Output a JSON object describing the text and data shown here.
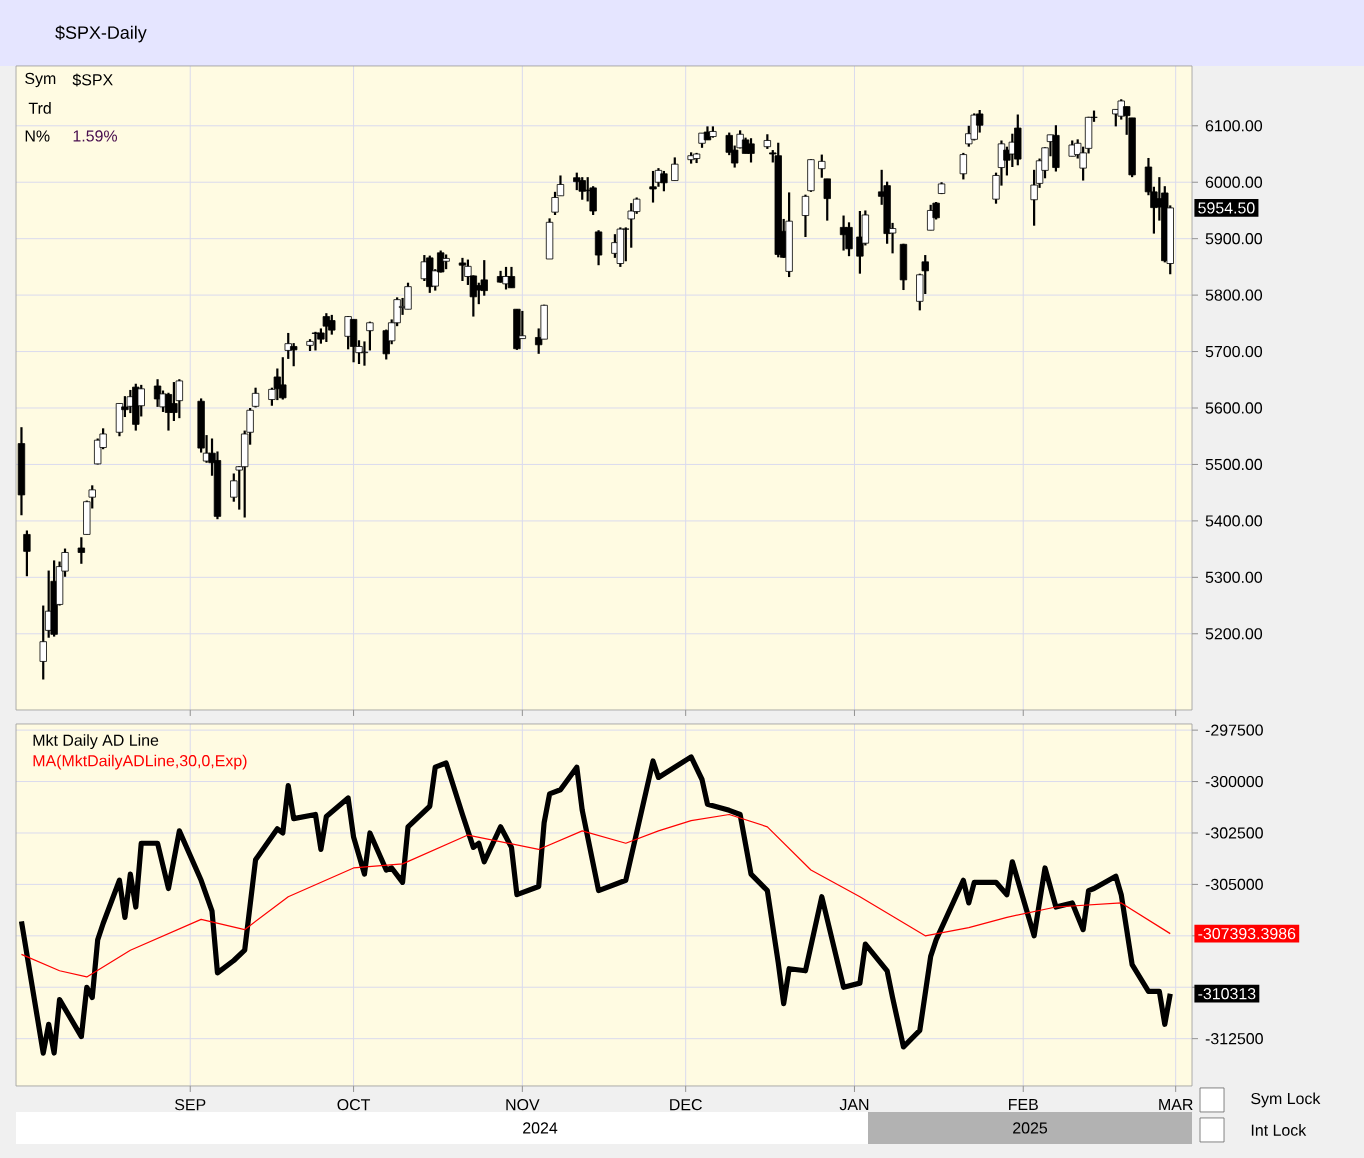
{
  "chart_data": [
    {
      "type": "candlestick",
      "title": "$SPX-Daily",
      "color": "#000000",
      "grid": true,
      "tick_labels": "y",
      "xlim": [
        "2024-07-31",
        "2025-03-04"
      ],
      "xticks": [
        {
          "value": "2024-09-01",
          "label": null
        },
        {
          "value": "2024-10-01",
          "label": null
        },
        {
          "value": "2024-11-01",
          "label": null
        },
        {
          "value": "2024-12-01",
          "label": null
        },
        {
          "value": "2025-01-01",
          "label": null
        },
        {
          "value": "2025-02-01",
          "label": null
        },
        {
          "value": "2025-03-01",
          "label": null
        }
      ],
      "ylim": [
        5065,
        6206
      ],
      "yticks": [
        {
          "value": 5200,
          "label": "5200.00"
        },
        {
          "value": 5300,
          "label": "5300.00"
        },
        {
          "value": 5400,
          "label": "5400.00"
        },
        {
          "value": 5500,
          "label": "5500.00"
        },
        {
          "value": 5600,
          "label": "5600.00"
        },
        {
          "value": 5700,
          "label": "5700.00"
        },
        {
          "value": 5800,
          "label": "5800.00"
        },
        {
          "value": 5900,
          "label": "5900.00"
        },
        {
          "value": 6000,
          "label": "6000.00"
        },
        {
          "value": 6100,
          "label": "6100.00"
        }
      ],
      "annotations": [
        "Sym",
        "$SPX",
        "Trd",
        "N%",
        "1.59%",
        {
          "text": "5954.50",
          "x": "2025-02-28",
          "y": 5954.5
        }
      ],
      "x": [
        "2024-08-01",
        "2024-08-02",
        "2024-08-05",
        "2024-08-06",
        "2024-08-07",
        "2024-08-08",
        "2024-08-09",
        "2024-08-12",
        "2024-08-13",
        "2024-08-14",
        "2024-08-15",
        "2024-08-16",
        "2024-08-19",
        "2024-08-20",
        "2024-08-21",
        "2024-08-22",
        "2024-08-23",
        "2024-08-26",
        "2024-08-27",
        "2024-08-28",
        "2024-08-29",
        "2024-08-30",
        "2024-09-03",
        "2024-09-04",
        "2024-09-05",
        "2024-09-06",
        "2024-09-09",
        "2024-09-10",
        "2024-09-11",
        "2024-09-12",
        "2024-09-13",
        "2024-09-16",
        "2024-09-17",
        "2024-09-18",
        "2024-09-19",
        "2024-09-20",
        "2024-09-23",
        "2024-09-24",
        "2024-09-25",
        "2024-09-26",
        "2024-09-27",
        "2024-09-30",
        "2024-10-01",
        "2024-10-02",
        "2024-10-03",
        "2024-10-04",
        "2024-10-07",
        "2024-10-08",
        "2024-10-09",
        "2024-10-10",
        "2024-10-11",
        "2024-10-14",
        "2024-10-15",
        "2024-10-16",
        "2024-10-17",
        "2024-10-18",
        "2024-10-21",
        "2024-10-22",
        "2024-10-23",
        "2024-10-24",
        "2024-10-25",
        "2024-10-28",
        "2024-10-29",
        "2024-10-30",
        "2024-10-31",
        "2024-11-01",
        "2024-11-04",
        "2024-11-05",
        "2024-11-06",
        "2024-11-07",
        "2024-11-08",
        "2024-11-11",
        "2024-11-12",
        "2024-11-13",
        "2024-11-14",
        "2024-11-15",
        "2024-11-18",
        "2024-11-19",
        "2024-11-20",
        "2024-11-21",
        "2024-11-22",
        "2024-11-25",
        "2024-11-26",
        "2024-11-27",
        "2024-11-29",
        "2024-12-02",
        "2024-12-03",
        "2024-12-04",
        "2024-12-05",
        "2024-12-06",
        "2024-12-09",
        "2024-12-10",
        "2024-12-11",
        "2024-12-12",
        "2024-12-13",
        "2024-12-16",
        "2024-12-17",
        "2024-12-18",
        "2024-12-19",
        "2024-12-20",
        "2024-12-23",
        "2024-12-24",
        "2024-12-26",
        "2024-12-27",
        "2024-12-30",
        "2024-12-31",
        "2025-01-02",
        "2025-01-03",
        "2025-01-06",
        "2025-01-07",
        "2025-01-08",
        "2025-01-10",
        "2025-01-13",
        "2025-01-14",
        "2025-01-15",
        "2025-01-16",
        "2025-01-17",
        "2025-01-21",
        "2025-01-22",
        "2025-01-23",
        "2025-01-24",
        "2025-01-27",
        "2025-01-28",
        "2025-01-29",
        "2025-01-30",
        "2025-01-31",
        "2025-02-03",
        "2025-02-04",
        "2025-02-05",
        "2025-02-06",
        "2025-02-07",
        "2025-02-10",
        "2025-02-11",
        "2025-02-12",
        "2025-02-13",
        "2025-02-14",
        "2025-02-18",
        "2025-02-19",
        "2025-02-20",
        "2025-02-21",
        "2025-02-24",
        "2025-02-25",
        "2025-02-26",
        "2025-02-27",
        "2025-02-28"
      ],
      "ohlc": [
        [
          5537,
          5566,
          5410,
          5446
        ],
        [
          5376,
          5383,
          5302,
          5346
        ],
        [
          5151,
          5250,
          5119,
          5186
        ],
        [
          5206,
          5312,
          5193,
          5240
        ],
        [
          5293,
          5330,
          5195,
          5199
        ],
        [
          5252,
          5328,
          5250,
          5319
        ],
        [
          5311,
          5351,
          5301,
          5344
        ],
        [
          5352,
          5371,
          5324,
          5344
        ],
        [
          5376,
          5436,
          5376,
          5434
        ],
        [
          5442,
          5463,
          5422,
          5455
        ],
        [
          5501,
          5546,
          5500,
          5543
        ],
        [
          5530,
          5564,
          5527,
          5554
        ],
        [
          5557,
          5608,
          5550,
          5608
        ],
        [
          5602,
          5621,
          5584,
          5597
        ],
        [
          5603,
          5632,
          5591,
          5620
        ],
        [
          5637,
          5643,
          5560,
          5571
        ],
        [
          5604,
          5641,
          5585,
          5634
        ],
        [
          5639,
          5651,
          5602,
          5616
        ],
        [
          5602,
          5631,
          5593,
          5625
        ],
        [
          5624,
          5627,
          5560,
          5592
        ],
        [
          5608,
          5646,
          5577,
          5592
        ],
        [
          5613,
          5651,
          5582,
          5648
        ],
        [
          5612,
          5617,
          5521,
          5529
        ],
        [
          5506,
          5552,
          5503,
          5520
        ],
        [
          5520,
          5546,
          5480,
          5503
        ],
        [
          5507,
          5523,
          5403,
          5408
        ],
        [
          5442,
          5484,
          5434,
          5471
        ],
        [
          5490,
          5497,
          5420,
          5496
        ],
        [
          5496,
          5560,
          5406,
          5554
        ],
        [
          5557,
          5600,
          5535,
          5596
        ],
        [
          5603,
          5636,
          5601,
          5626
        ],
        [
          5615,
          5636,
          5604,
          5633
        ],
        [
          5655,
          5670,
          5614,
          5634
        ],
        [
          5641,
          5690,
          5615,
          5618
        ],
        [
          5702,
          5733,
          5687,
          5714
        ],
        [
          5709,
          5715,
          5674,
          5703
        ],
        [
          5711,
          5722,
          5701,
          5718
        ],
        [
          5733,
          5735,
          5702,
          5732
        ],
        [
          5733,
          5741,
          5714,
          5722
        ],
        [
          5762,
          5768,
          5717,
          5745
        ],
        [
          5755,
          5765,
          5730,
          5738
        ],
        [
          5727,
          5763,
          5704,
          5762
        ],
        [
          5757,
          5757,
          5681,
          5709
        ],
        [
          5698,
          5720,
          5678,
          5709
        ],
        [
          5698,
          5718,
          5675,
          5699
        ],
        [
          5737,
          5753,
          5702,
          5751
        ],
        [
          5737,
          5739,
          5686,
          5696
        ],
        [
          5719,
          5757,
          5713,
          5751
        ],
        [
          5751,
          5796,
          5745,
          5792
        ],
        [
          5778,
          5795,
          5765,
          5780
        ],
        [
          5775,
          5822,
          5775,
          5815
        ],
        [
          5829,
          5871,
          5825,
          5859
        ],
        [
          5866,
          5870,
          5804,
          5815
        ],
        [
          5816,
          5846,
          5808,
          5843
        ],
        [
          5875,
          5879,
          5840,
          5841
        ],
        [
          5860,
          5872,
          5846,
          5865
        ],
        [
          5857,
          5866,
          5825,
          5853
        ],
        [
          5833,
          5863,
          5818,
          5851
        ],
        [
          5834,
          5835,
          5762,
          5797
        ],
        [
          5817,
          5822,
          5784,
          5809
        ],
        [
          5827,
          5862,
          5799,
          5808
        ],
        [
          5833,
          5843,
          5822,
          5823
        ],
        [
          5820,
          5850,
          5810,
          5833
        ],
        [
          5833,
          5850,
          5813,
          5813
        ],
        [
          5775,
          5775,
          5703,
          5705
        ],
        [
          5723,
          5772,
          5723,
          5728
        ],
        [
          5725,
          5741,
          5696,
          5712
        ],
        [
          5722,
          5783,
          5722,
          5782
        ],
        [
          5864,
          5936,
          5864,
          5929
        ],
        [
          5947,
          5983,
          5942,
          5973
        ],
        [
          5976,
          6012,
          5976,
          5996
        ],
        [
          6008,
          6017,
          5986,
          6001
        ],
        [
          6003,
          6009,
          5969,
          5984
        ],
        [
          5986,
          6009,
          5966,
          5985
        ],
        [
          5990,
          5993,
          5942,
          5949
        ],
        [
          5912,
          5915,
          5853,
          5871
        ],
        [
          5874,
          5908,
          5866,
          5893
        ],
        [
          5856,
          5920,
          5850,
          5917
        ],
        [
          5917,
          5920,
          5860,
          5917
        ],
        [
          5935,
          5963,
          5884,
          5949
        ],
        [
          5948,
          5973,
          5944,
          5970
        ],
        [
          5992,
          6020,
          5964,
          5988
        ],
        [
          6000,
          6025,
          5992,
          6021
        ],
        [
          6015,
          6020,
          5984,
          5999
        ],
        [
          6003,
          6044,
          6003,
          6032
        ],
        [
          6040,
          6053,
          6033,
          6047
        ],
        [
          6042,
          6052,
          6034,
          6050
        ],
        [
          6069,
          6087,
          6061,
          6087
        ],
        [
          6089,
          6099,
          6075,
          6075
        ],
        [
          6081,
          6099,
          6079,
          6090
        ],
        [
          6083,
          6088,
          6048,
          6053
        ],
        [
          6057,
          6065,
          6026,
          6034
        ],
        [
          6061,
          6092,
          6060,
          6085
        ],
        [
          6075,
          6079,
          6051,
          6051
        ],
        [
          6068,
          6078,
          6035,
          6051
        ],
        [
          6063,
          6085,
          6059,
          6074
        ],
        [
          6052,
          6057,
          6035,
          6050
        ],
        [
          6047,
          6070,
          5867,
          5872
        ],
        [
          5913,
          5935,
          5866,
          5867
        ],
        [
          5842,
          5982,
          5832,
          5931
        ],
        [
          5941,
          5978,
          5903,
          5975
        ],
        [
          5985,
          6041,
          5983,
          6040
        ],
        [
          6024,
          6049,
          6008,
          6037
        ],
        [
          6006,
          6006,
          5932,
          5971
        ],
        [
          5920,
          5941,
          5879,
          5907
        ],
        [
          5920,
          5929,
          5869,
          5882
        ],
        [
          5903,
          5949,
          5838,
          5869
        ],
        [
          5892,
          5950,
          5888,
          5942
        ],
        [
          5983,
          6022,
          5960,
          5975
        ],
        [
          5994,
          6001,
          5891,
          5909
        ],
        [
          5910,
          5928,
          5874,
          5918
        ],
        [
          5890,
          5891,
          5809,
          5827
        ],
        [
          5789,
          5838,
          5773,
          5836
        ],
        [
          5859,
          5871,
          5802,
          5843
        ],
        [
          5915,
          5960,
          5915,
          5950
        ],
        [
          5963,
          5965,
          5934,
          5937
        ],
        [
          5980,
          6000,
          5979,
          5997
        ],
        [
          6015,
          6052,
          6005,
          6049
        ],
        [
          6068,
          6100,
          6063,
          6086
        ],
        [
          6076,
          6122,
          6074,
          6119
        ],
        [
          6121,
          6128,
          6088,
          6101
        ],
        [
          5970,
          6017,
          5962,
          6012
        ],
        [
          6026,
          6074,
          5994,
          6068
        ],
        [
          6057,
          6063,
          6012,
          6039
        ],
        [
          6050,
          6086,
          6027,
          6071
        ],
        [
          6096,
          6120,
          6030,
          6041
        ],
        [
          5969,
          6022,
          5923,
          5995
        ],
        [
          5998,
          6042,
          5990,
          6038
        ],
        [
          6021,
          6062,
          6007,
          6061
        ],
        [
          6072,
          6084,
          6046,
          6084
        ],
        [
          6083,
          6101,
          6019,
          6026
        ],
        [
          6046,
          6074,
          6046,
          6066
        ],
        [
          6049,
          6076,
          6042,
          6069
        ],
        [
          6025,
          6063,
          6003,
          6052
        ],
        [
          6060,
          6116,
          6051,
          6115
        ],
        [
          6115,
          6127,
          6107,
          6115
        ],
        [
          6121,
          6129,
          6099,
          6129
        ],
        [
          6117,
          6147,
          6111,
          6144
        ],
        [
          6134,
          6134,
          6084,
          6118
        ],
        [
          6114,
          6114,
          6009,
          6013
        ],
        [
          6027,
          6043,
          5977,
          5983
        ],
        [
          5983,
          5992,
          5909,
          5955
        ],
        [
          5971,
          6009,
          5932,
          5956
        ],
        [
          5981,
          5993,
          5858,
          5861
        ],
        [
          5856,
          5959,
          5837,
          5954.5
        ]
      ]
    },
    {
      "type": "line",
      "grid": true,
      "legend": "top left",
      "xlim": [
        "2024-07-31",
        "2025-03-04"
      ],
      "xticks": [
        {
          "value": "2024-09-01",
          "label": "SEP"
        },
        {
          "value": "2024-10-01",
          "label": "OCT"
        },
        {
          "value": "2024-11-01",
          "label": "NOV"
        },
        {
          "value": "2024-12-01",
          "label": "DEC"
        },
        {
          "value": "2025-01-01",
          "label": "JAN"
        },
        {
          "value": "2025-02-01",
          "label": "FEB"
        },
        {
          "value": "2025-03-01",
          "label": "MAR"
        }
      ],
      "ylim": [
        -314800,
        -297200
      ],
      "yticks": [
        -312500,
        {
          "value": -310000,
          "label": null
        },
        {
          "value": -307500,
          "label": null
        },
        -305000,
        -302500,
        -300000,
        -297500
      ],
      "annotations": [
        {
          "text": "-307393.3986",
          "x": "2025-02-28",
          "y": -307393.3986
        },
        {
          "text": "-310313",
          "x": "2025-02-28",
          "y": -310313
        },
        "2024",
        "2025",
        "Sym Lock",
        "Int Lock"
      ],
      "series": [
        {
          "name": "Mkt Daily AD Line",
          "color": "#000000",
          "x": [
            "2024-08-01",
            "2024-08-05",
            "2024-08-06",
            "2024-08-07",
            "2024-08-08",
            "2024-08-12",
            "2024-08-13",
            "2024-08-14",
            "2024-08-15",
            "2024-08-16",
            "2024-08-19",
            "2024-08-20",
            "2024-08-21",
            "2024-08-22",
            "2024-08-23",
            "2024-08-26",
            "2024-08-28",
            "2024-08-30",
            "2024-09-03",
            "2024-09-05",
            "2024-09-06",
            "2024-09-09",
            "2024-09-11",
            "2024-09-13",
            "2024-09-17",
            "2024-09-18",
            "2024-09-19",
            "2024-09-20",
            "2024-09-24",
            "2024-09-25",
            "2024-09-26",
            "2024-09-30",
            "2024-10-01",
            "2024-10-03",
            "2024-10-04",
            "2024-10-07",
            "2024-10-08",
            "2024-10-10",
            "2024-10-11",
            "2024-10-15",
            "2024-10-16",
            "2024-10-18",
            "2024-10-21",
            "2024-10-23",
            "2024-10-24",
            "2024-10-25",
            "2024-10-28",
            "2024-10-30",
            "2024-10-31",
            "2024-11-04",
            "2024-11-05",
            "2024-11-06",
            "2024-11-08",
            "2024-11-11",
            "2024-11-12",
            "2024-11-15",
            "2024-11-20",
            "2024-11-25",
            "2024-11-26",
            "2024-12-02",
            "2024-12-04",
            "2024-12-05",
            "2024-12-09",
            "2024-12-11",
            "2024-12-13",
            "2024-12-16",
            "2024-12-18",
            "2024-12-19",
            "2024-12-20",
            "2024-12-23",
            "2024-12-26",
            "2024-12-30",
            "2025-01-02",
            "2025-01-03",
            "2025-01-07",
            "2025-01-08",
            "2025-01-10",
            "2025-01-13",
            "2025-01-15",
            "2025-01-16",
            "2025-01-21",
            "2025-01-22",
            "2025-01-23",
            "2025-01-27",
            "2025-01-29",
            "2025-01-30",
            "2025-02-03",
            "2025-02-05",
            "2025-02-07",
            "2025-02-10",
            "2025-02-12",
            "2025-02-13",
            "2025-02-14",
            "2025-02-18",
            "2025-02-19",
            "2025-02-21",
            "2025-02-24",
            "2025-02-26",
            "2025-02-27",
            "2025-02-28"
          ],
          "values": [
            -306800,
            -313200,
            -311800,
            -313200,
            -310600,
            -312400,
            -310000,
            -310500,
            -307700,
            -306900,
            -304800,
            -306600,
            -304500,
            -306100,
            -303000,
            -303000,
            -305200,
            -302400,
            -304800,
            -306300,
            -309300,
            -308700,
            -308200,
            -303800,
            -302300,
            -302500,
            -300200,
            -301800,
            -301600,
            -303300,
            -301700,
            -300800,
            -302700,
            -304500,
            -302500,
            -304300,
            -304200,
            -304900,
            -302200,
            -301200,
            -299300,
            -299100,
            -301600,
            -303200,
            -303000,
            -303900,
            -302200,
            -303200,
            -305500,
            -305100,
            -302000,
            -300600,
            -300400,
            -299300,
            -301400,
            -305300,
            -304800,
            -299000,
            -299800,
            -298800,
            -299900,
            -301100,
            -301400,
            -301600,
            -304500,
            -305300,
            -308800,
            -310800,
            -309100,
            -309200,
            -305600,
            -310000,
            -309800,
            -307900,
            -309200,
            -310500,
            -312900,
            -312100,
            -308500,
            -307700,
            -304800,
            -305900,
            -304900,
            -304900,
            -305500,
            -303900,
            -307500,
            -304200,
            -306100,
            -305900,
            -307200,
            -305300,
            -305200,
            -304600,
            -305500,
            -308900,
            -310200,
            -310200,
            -311800,
            -310313
          ]
        },
        {
          "name": "MA(MktDailyADLine,30,0,Exp)",
          "color": "#ff0000",
          "x": [
            "2024-08-01",
            "2024-08-08",
            "2024-08-13",
            "2024-08-21",
            "2024-09-03",
            "2024-09-11",
            "2024-09-19",
            "2024-10-01",
            "2024-10-10",
            "2024-10-22",
            "2024-11-04",
            "2024-11-12",
            "2024-11-20",
            "2024-11-26",
            "2024-12-02",
            "2024-12-09",
            "2024-12-16",
            "2024-12-24",
            "2025-01-02",
            "2025-01-14",
            "2025-01-22",
            "2025-01-29",
            "2025-02-07",
            "2025-02-19",
            "2025-02-28"
          ],
          "values": [
            -308400,
            -309200,
            -309500,
            -308200,
            -306700,
            -307200,
            -305600,
            -304200,
            -304000,
            -302600,
            -303300,
            -302400,
            -303000,
            -302400,
            -301900,
            -301600,
            -302200,
            -304300,
            -305600,
            -307500,
            -307100,
            -306600,
            -306100,
            -305900,
            -307393.3986
          ]
        }
      ]
    }
  ]
}
